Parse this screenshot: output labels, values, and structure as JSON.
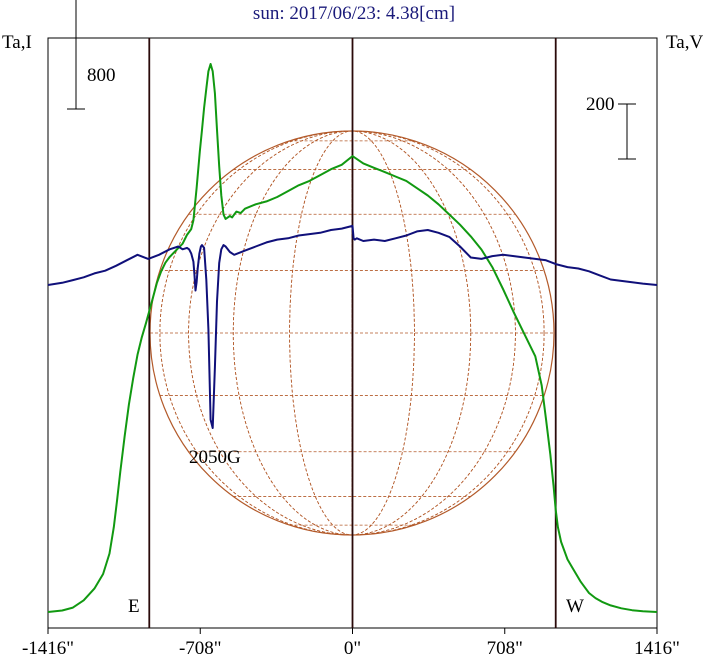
{
  "chart_data": {
    "type": "line",
    "title": "sun: 2017/06/23: 4.38[cm]",
    "left_axis_label": "Ta,I",
    "right_axis_label": "Ta,V",
    "left_scale_label": "800",
    "right_scale_label": "200",
    "east_label": "E",
    "west_label": "W",
    "annotation": "2050G",
    "x_ticks": [
      {
        "value": -1416,
        "label": "-1416\""
      },
      {
        "value": -708,
        "label": "-708\""
      },
      {
        "value": 0,
        "label": "0\""
      },
      {
        "value": 708,
        "label": "708\""
      },
      {
        "value": 1416,
        "label": "1416\""
      }
    ],
    "xlim": [
      -1416,
      1416
    ],
    "vertical_lines": [
      -945,
      0,
      945
    ],
    "left_scale_value": 800,
    "right_scale_value": 200,
    "series": [
      {
        "axis": "left",
        "color": "#119911",
        "x": [
          -1416,
          -1350,
          -1300,
          -1250,
          -1200,
          -1160,
          -1130,
          -1110,
          -1095,
          -1080,
          -1060,
          -1040,
          -1020,
          -1000,
          -980,
          -960,
          -945,
          -930,
          -910,
          -890,
          -870,
          -850,
          -830,
          -810,
          -790,
          -770,
          -750,
          -740,
          -725,
          -710,
          -700,
          -690,
          -680,
          -670,
          -660,
          -650,
          -640,
          -630,
          -620,
          -610,
          -600,
          -590,
          -580,
          -570,
          -560,
          -550,
          -540,
          -520,
          -500,
          -450,
          -400,
          -350,
          -300,
          -250,
          -200,
          -150,
          -100,
          -50,
          0,
          50,
          100,
          150,
          200,
          250,
          300,
          350,
          400,
          450,
          500,
          550,
          600,
          650,
          700,
          750,
          800,
          850,
          880,
          900,
          920,
          935,
          945,
          955,
          970,
          985,
          1000,
          1020,
          1040,
          1060,
          1080,
          1100,
          1130,
          1160,
          1200,
          1250,
          1300,
          1350,
          1416
        ],
        "y": [
          0,
          10,
          30,
          80,
          160,
          260,
          400,
          580,
          760,
          960,
          1200,
          1420,
          1600,
          1760,
          1880,
          1980,
          2060,
          2140,
          2250,
          2330,
          2390,
          2430,
          2460,
          2490,
          2520,
          2580,
          2620,
          2680,
          2900,
          3150,
          3300,
          3450,
          3580,
          3700,
          3750,
          3700,
          3550,
          3300,
          3050,
          2850,
          2720,
          2690,
          2700,
          2710,
          2700,
          2720,
          2740,
          2730,
          2760,
          2790,
          2810,
          2840,
          2880,
          2920,
          2950,
          2990,
          3030,
          3060,
          3120,
          3070,
          3040,
          3010,
          2980,
          2950,
          2900,
          2850,
          2790,
          2720,
          2650,
          2570,
          2480,
          2360,
          2210,
          2050,
          1900,
          1750,
          1550,
          1320,
          1080,
          860,
          700,
          580,
          480,
          420,
          360,
          310,
          260,
          210,
          170,
          130,
          95,
          70,
          45,
          25,
          12,
          5,
          0
        ]
      },
      {
        "axis": "right",
        "color": "#10107a",
        "x": [
          -1416,
          -1350,
          -1300,
          -1250,
          -1200,
          -1150,
          -1100,
          -1050,
          -1000,
          -950,
          -900,
          -850,
          -810,
          -790,
          -770,
          -760,
          -750,
          -740,
          -735,
          -730,
          -725,
          -720,
          -712,
          -705,
          -700,
          -690,
          -680,
          -670,
          -660,
          -650,
          -640,
          -630,
          -620,
          -610,
          -600,
          -590,
          -570,
          -550,
          -500,
          -450,
          -400,
          -350,
          -300,
          -250,
          -200,
          -150,
          -100,
          -50,
          0,
          5,
          10,
          20,
          50,
          100,
          150,
          200,
          250,
          300,
          350,
          400,
          450,
          500,
          550,
          600,
          650,
          700,
          750,
          800,
          850,
          900,
          950,
          1000,
          1050,
          1100,
          1150,
          1200,
          1250,
          1300,
          1350,
          1416
        ],
        "y": [
          0,
          8,
          18,
          28,
          42,
          52,
          70,
          90,
          110,
          95,
          110,
          130,
          140,
          130,
          135,
          130,
          115,
          85,
          40,
          -20,
          10,
          60,
          115,
          140,
          145,
          135,
          20,
          -160,
          -490,
          -520,
          -300,
          -60,
          80,
          130,
          145,
          140,
          120,
          110,
          125,
          140,
          155,
          165,
          170,
          180,
          185,
          190,
          200,
          205,
          215,
          170,
          165,
          170,
          160,
          165,
          160,
          170,
          180,
          195,
          200,
          190,
          175,
          140,
          100,
          95,
          105,
          110,
          105,
          100,
          95,
          90,
          75,
          65,
          60,
          50,
          35,
          20,
          15,
          10,
          5,
          0
        ]
      }
    ]
  }
}
